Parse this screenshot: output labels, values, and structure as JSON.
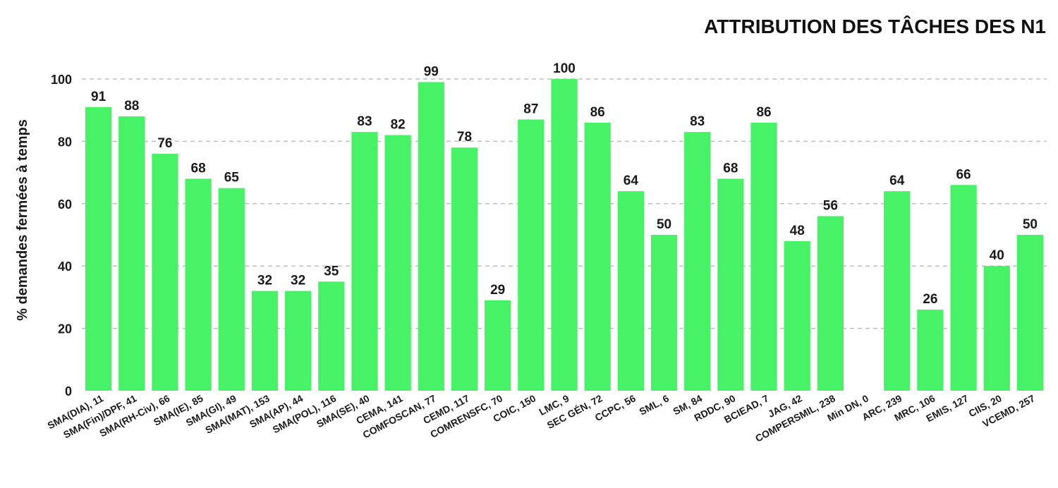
{
  "chart_data": {
    "type": "bar",
    "title": "ATTRIBUTION DES TÂCHES DES N1",
    "ylabel": "% demandes fermées à temps",
    "xlabel": "",
    "ylim": [
      0,
      100
    ],
    "yticks": [
      0,
      20,
      40,
      60,
      80,
      100
    ],
    "grid": true,
    "bar_color": "#48f266",
    "categories": [
      "SMA(DIA), 11",
      "SMA(Fin)/DPF, 41",
      "SMA(RH-Civ), 66",
      "SMA(IE), 85",
      "SMA(GI), 49",
      "SMA(MAT), 153",
      "SMA(AP), 44",
      "SMA(POL), 116",
      "SMA(SE), 40",
      "CEMA, 141",
      "COMFOSCAN, 77",
      "CEMD, 117",
      "COMRENSFC, 70",
      "COIC, 150",
      "LMC, 9",
      "SEC GÉN, 72",
      "CCPC, 56",
      "SML, 6",
      "SM, 84",
      "RDDC, 90",
      "BCIEAD, 7",
      "JAG, 42",
      "COMPERSMIL, 238",
      "Min DN, 0",
      "ARC, 239",
      "MRC, 106",
      "EMIS, 127",
      "CIIS, 20",
      "VCEMD, 257"
    ],
    "values": [
      91,
      88,
      76,
      68,
      65,
      32,
      32,
      35,
      83,
      82,
      99,
      78,
      29,
      87,
      100,
      86,
      64,
      50,
      83,
      68,
      86,
      48,
      56,
      null,
      64,
      26,
      66,
      40,
      50
    ],
    "data_labels": [
      "91",
      "88",
      "76",
      "68",
      "65",
      "32",
      "32",
      "35",
      "83",
      "82",
      "99",
      "78",
      "29",
      "87",
      "100",
      "86",
      "64",
      "50",
      "83",
      "68",
      "86",
      "48",
      "56",
      "",
      "64",
      "26",
      "66",
      "40",
      "50"
    ]
  }
}
